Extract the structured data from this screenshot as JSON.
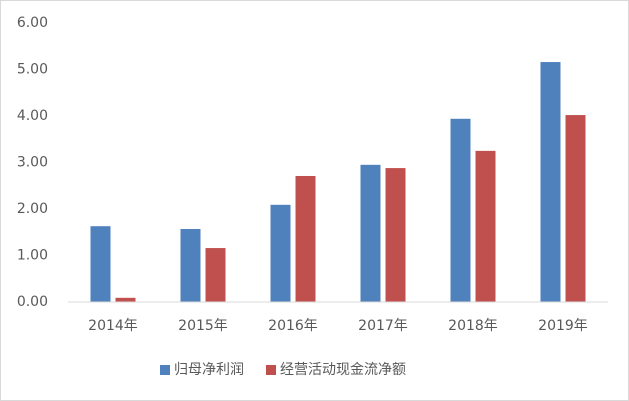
{
  "chart_data": {
    "type": "bar",
    "categories": [
      "2014年",
      "2015年",
      "2016年",
      "2017年",
      "2018年",
      "2019年"
    ],
    "series": [
      {
        "name": "归母净利润",
        "color": "#4f81bd",
        "values": [
          1.63,
          1.57,
          2.09,
          2.95,
          3.94,
          5.16
        ]
      },
      {
        "name": "经营活动现金流净额",
        "color": "#c0504d",
        "values": [
          0.09,
          1.16,
          2.71,
          2.88,
          3.25,
          4.02
        ]
      }
    ],
    "ylim": [
      0,
      6
    ],
    "yticks": [
      {
        "value": 0,
        "label": "0.00"
      },
      {
        "value": 1,
        "label": "1.00"
      },
      {
        "value": 2,
        "label": "2.00"
      },
      {
        "value": 3,
        "label": "3.00"
      },
      {
        "value": 4,
        "label": "4.00"
      },
      {
        "value": 5,
        "label": "5.00"
      },
      {
        "value": 6,
        "label": "6.00"
      }
    ],
    "grid": false,
    "legend": "bottom"
  }
}
